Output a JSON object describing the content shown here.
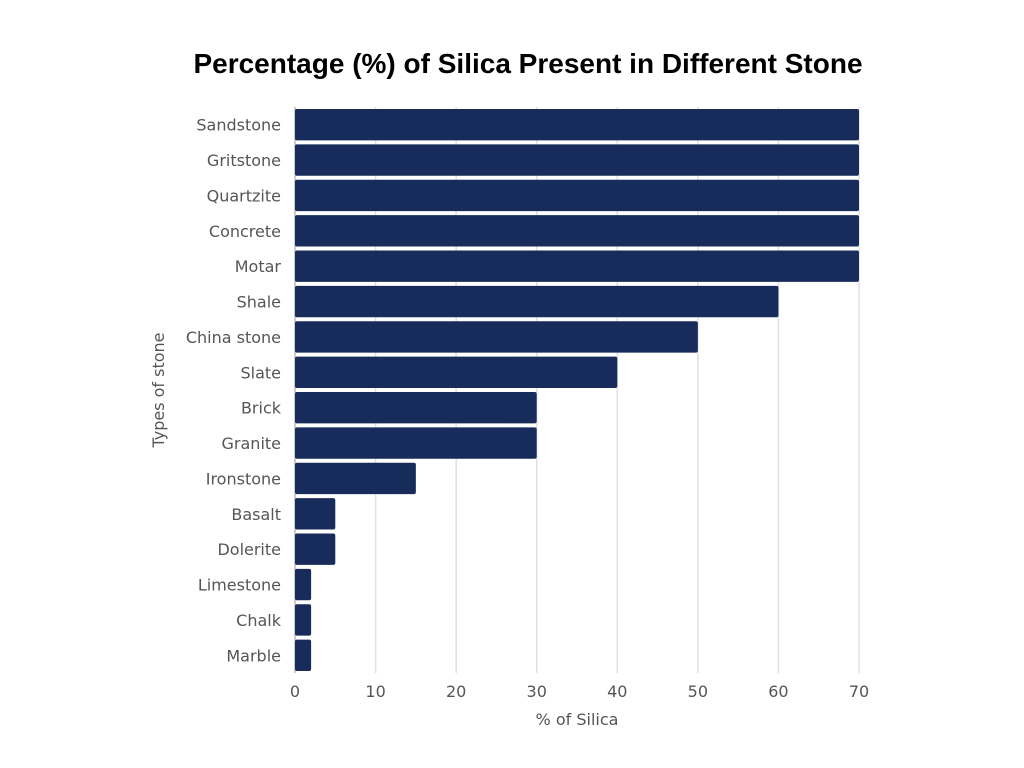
{
  "chart_data": {
    "type": "bar",
    "orientation": "horizontal",
    "title": "Percentage (%) of Silica Present in Different Stone",
    "xlabel": "% of Silica",
    "ylabel": "Types of stone",
    "xlim": [
      0,
      70
    ],
    "xticks": [
      0,
      10,
      20,
      30,
      40,
      50,
      60,
      70
    ],
    "grid": true,
    "bar_color": "#172c5a",
    "categories": [
      "Sandstone",
      "Gritstone",
      "Quartzite",
      "Concrete",
      "Motar",
      "Shale",
      "China stone",
      "Slate",
      "Brick",
      "Granite",
      "Ironstone",
      "Basalt",
      "Dolerite",
      "Limestone",
      "Chalk",
      "Marble"
    ],
    "values": [
      70,
      70,
      70,
      70,
      70,
      60,
      50,
      40,
      30,
      30,
      15,
      5,
      5,
      2,
      2,
      2
    ]
  }
}
